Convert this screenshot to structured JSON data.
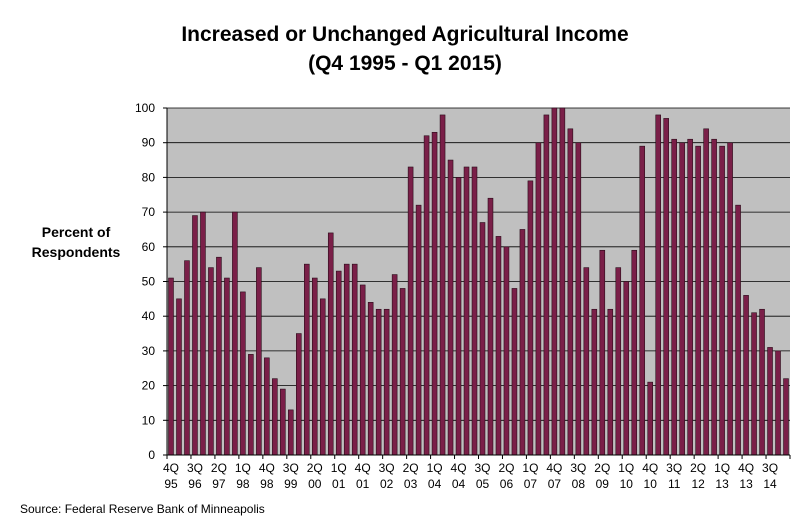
{
  "chart_data": {
    "type": "bar",
    "title": "Increased or Unchanged Agricultural Income",
    "subtitle": "(Q4 1995 - Q1 2015)",
    "ylabel_line1": "Percent of",
    "ylabel_line2": "Respondents",
    "xlabel": "",
    "ylim": [
      0,
      100
    ],
    "y_ticks": [
      0,
      10,
      20,
      30,
      40,
      50,
      60,
      70,
      80,
      90,
      100
    ],
    "grid": true,
    "x_tick_labels": [
      {
        "quarter": "4Q",
        "year": "95",
        "index": 0
      },
      {
        "quarter": "3Q",
        "year": "96",
        "index": 3
      },
      {
        "quarter": "2Q",
        "year": "97",
        "index": 6
      },
      {
        "quarter": "1Q",
        "year": "98",
        "index": 9
      },
      {
        "quarter": "4Q",
        "year": "98",
        "index": 12
      },
      {
        "quarter": "3Q",
        "year": "99",
        "index": 15
      },
      {
        "quarter": "2Q",
        "year": "00",
        "index": 18
      },
      {
        "quarter": "1Q",
        "year": "01",
        "index": 21
      },
      {
        "quarter": "4Q",
        "year": "01",
        "index": 24
      },
      {
        "quarter": "3Q",
        "year": "02",
        "index": 27
      },
      {
        "quarter": "2Q",
        "year": "03",
        "index": 30
      },
      {
        "quarter": "1Q",
        "year": "04",
        "index": 33
      },
      {
        "quarter": "4Q",
        "year": "04",
        "index": 36
      },
      {
        "quarter": "3Q",
        "year": "05",
        "index": 39
      },
      {
        "quarter": "2Q",
        "year": "06",
        "index": 42
      },
      {
        "quarter": "1Q",
        "year": "07",
        "index": 45
      },
      {
        "quarter": "4Q",
        "year": "07",
        "index": 48
      },
      {
        "quarter": "3Q",
        "year": "08",
        "index": 51
      },
      {
        "quarter": "2Q",
        "year": "09",
        "index": 54
      },
      {
        "quarter": "1Q",
        "year": "10",
        "index": 57
      },
      {
        "quarter": "4Q",
        "year": "10",
        "index": 60
      },
      {
        "quarter": "3Q",
        "year": "11",
        "index": 63
      },
      {
        "quarter": "2Q",
        "year": "12",
        "index": 66
      },
      {
        "quarter": "1Q",
        "year": "13",
        "index": 69
      },
      {
        "quarter": "4Q",
        "year": "13",
        "index": 72
      },
      {
        "quarter": "3Q",
        "year": "14",
        "index": 75
      }
    ],
    "values": [
      51,
      45,
      56,
      69,
      70,
      54,
      57,
      51,
      70,
      47,
      29,
      54,
      28,
      22,
      19,
      13,
      35,
      55,
      51,
      45,
      64,
      53,
      55,
      55,
      49,
      44,
      42,
      42,
      52,
      48,
      83,
      72,
      92,
      93,
      98,
      85,
      80,
      83,
      83,
      67,
      74,
      63,
      60,
      48,
      65,
      79,
      90,
      98,
      100,
      100,
      94,
      90,
      54,
      42,
      59,
      42,
      54,
      50,
      59,
      89,
      21,
      98,
      97,
      91,
      90,
      91,
      89,
      94,
      91,
      89,
      90,
      72,
      46,
      41,
      42,
      31,
      30,
      22
    ],
    "bar_color": "#7a1f48",
    "plot_background": "#c0c0c0"
  },
  "source": "Source:  Federal Reserve Bank of Minneapolis"
}
